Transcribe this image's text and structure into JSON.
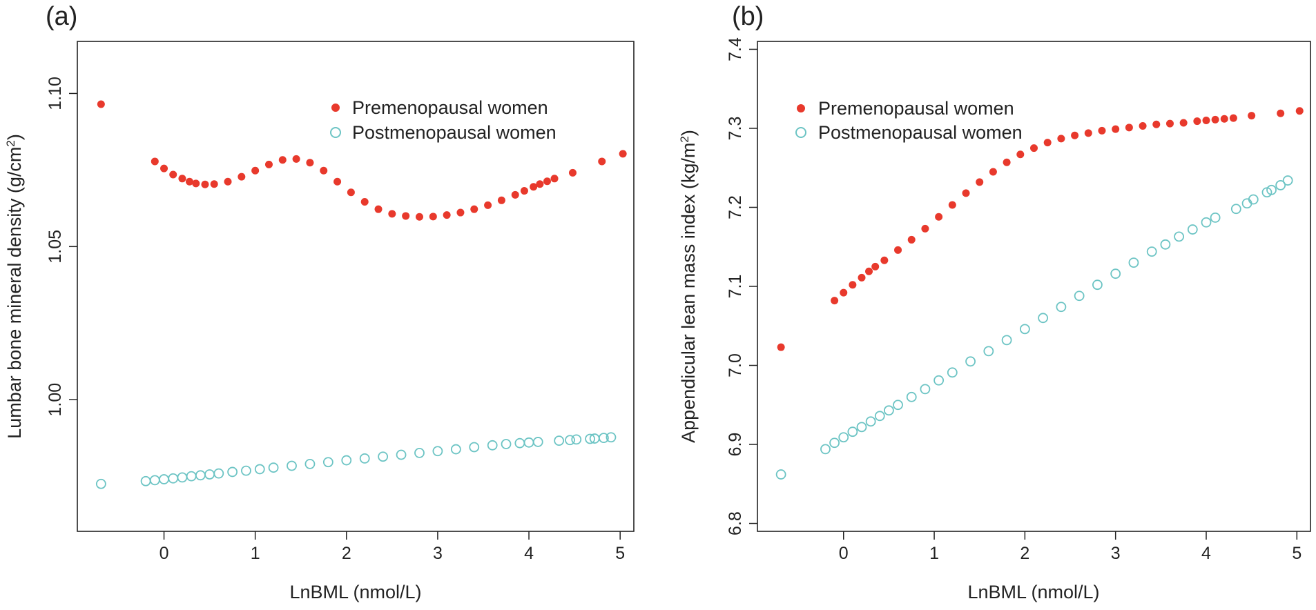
{
  "chart_data": [
    {
      "panel": "(a)",
      "type": "scatter",
      "xlabel": "LnBML (nmol/L)",
      "ylabel_main": "Lumbar bone mineral density (g/cm",
      "ylabel_sup": "2",
      "ylabel_tail": ")",
      "xlim": [
        -0.95,
        5.15
      ],
      "ylim": [
        0.957,
        1.117
      ],
      "xticks": [
        0,
        1,
        2,
        3,
        4,
        5
      ],
      "yticks": [
        1.0,
        1.05,
        1.1
      ],
      "xtick_labels": [
        "0",
        "1",
        "2",
        "3",
        "4",
        "5"
      ],
      "ytick_labels": [
        "1.00",
        "1.05",
        "1.10"
      ],
      "legend": [
        "Premenopausal women",
        "Postmenopausal women"
      ],
      "series": [
        {
          "name": "Premenopausal women",
          "marker": "filled-circle",
          "x": [
            -0.69,
            -0.1,
            0.0,
            0.1,
            0.2,
            0.28,
            0.35,
            0.45,
            0.55,
            0.7,
            0.85,
            1.0,
            1.15,
            1.3,
            1.45,
            1.6,
            1.75,
            1.9,
            2.05,
            2.2,
            2.35,
            2.5,
            2.65,
            2.8,
            2.95,
            3.1,
            3.25,
            3.4,
            3.55,
            3.7,
            3.85,
            3.95,
            4.05,
            4.12,
            4.2,
            4.28,
            4.48,
            4.8,
            5.03
          ],
          "y": [
            1.0965,
            1.0778,
            1.0755,
            1.0735,
            1.0722,
            1.0712,
            1.0706,
            1.0703,
            1.0704,
            1.0712,
            1.0728,
            1.0748,
            1.0768,
            1.0783,
            1.0786,
            1.0774,
            1.0748,
            1.0712,
            1.0677,
            1.0646,
            1.0622,
            1.0607,
            1.06,
            1.0597,
            1.0598,
            1.0603,
            1.0611,
            1.0622,
            1.0635,
            1.0651,
            1.0669,
            1.0682,
            1.0695,
            1.0704,
            1.0713,
            1.0722,
            1.0741,
            1.0778,
            1.0803
          ]
        },
        {
          "name": "Postmenopausal women",
          "marker": "open-circle",
          "x": [
            -0.69,
            -0.2,
            -0.1,
            0.0,
            0.1,
            0.2,
            0.3,
            0.4,
            0.5,
            0.6,
            0.75,
            0.9,
            1.05,
            1.2,
            1.4,
            1.6,
            1.8,
            2.0,
            2.2,
            2.4,
            2.6,
            2.8,
            3.0,
            3.2,
            3.4,
            3.6,
            3.75,
            3.9,
            4.0,
            4.1,
            4.33,
            4.45,
            4.52,
            4.67,
            4.72,
            4.82,
            4.9
          ],
          "y": [
            0.9725,
            0.9734,
            0.9737,
            0.974,
            0.9743,
            0.9746,
            0.975,
            0.9753,
            0.9756,
            0.9759,
            0.9764,
            0.9768,
            0.9773,
            0.9778,
            0.9784,
            0.979,
            0.9796,
            0.9802,
            0.9808,
            0.9814,
            0.982,
            0.9826,
            0.9832,
            0.9838,
            0.9845,
            0.9851,
            0.9855,
            0.9858,
            0.986,
            0.9862,
            0.9866,
            0.9868,
            0.987,
            0.9872,
            0.9873,
            0.9875,
            0.9877
          ]
        }
      ]
    },
    {
      "panel": "(b)",
      "type": "scatter",
      "xlabel": "LnBML (nmol/L)",
      "ylabel_main": "Appendicular lean mass index (kg/m",
      "ylabel_sup": "2",
      "ylabel_tail": ")",
      "xlim": [
        -0.95,
        5.15
      ],
      "ylim": [
        6.79,
        7.41
      ],
      "xticks": [
        0,
        1,
        2,
        3,
        4,
        5
      ],
      "yticks": [
        6.8,
        6.9,
        7.0,
        7.1,
        7.2,
        7.3,
        7.4
      ],
      "xtick_labels": [
        "0",
        "1",
        "2",
        "3",
        "4",
        "5"
      ],
      "ytick_labels": [
        "6.8",
        "6.9",
        "7.0",
        "7.1",
        "7.2",
        "7.3",
        "7.4"
      ],
      "legend": [
        "Premenopausal women",
        "Postmenopausal women"
      ],
      "series": [
        {
          "name": "Premenopausal women",
          "marker": "filled-circle",
          "x": [
            -0.69,
            -0.1,
            0.0,
            0.1,
            0.2,
            0.28,
            0.35,
            0.45,
            0.6,
            0.75,
            0.9,
            1.05,
            1.2,
            1.35,
            1.5,
            1.65,
            1.8,
            1.95,
            2.1,
            2.25,
            2.4,
            2.55,
            2.7,
            2.85,
            3.0,
            3.15,
            3.3,
            3.45,
            3.6,
            3.75,
            3.9,
            4.0,
            4.1,
            4.2,
            4.3,
            4.5,
            4.82,
            5.03
          ],
          "y": [
            7.023,
            7.082,
            7.092,
            7.102,
            7.111,
            7.119,
            7.125,
            7.133,
            7.146,
            7.159,
            7.173,
            7.188,
            7.203,
            7.218,
            7.232,
            7.245,
            7.257,
            7.267,
            7.275,
            7.282,
            7.287,
            7.291,
            7.294,
            7.297,
            7.299,
            7.301,
            7.303,
            7.305,
            7.306,
            7.307,
            7.309,
            7.31,
            7.311,
            7.312,
            7.313,
            7.316,
            7.319,
            7.322
          ]
        },
        {
          "name": "Postmenopausal women",
          "marker": "open-circle",
          "x": [
            -0.69,
            -0.2,
            -0.1,
            0.0,
            0.1,
            0.2,
            0.3,
            0.4,
            0.5,
            0.6,
            0.75,
            0.9,
            1.05,
            1.2,
            1.4,
            1.6,
            1.8,
            2.0,
            2.2,
            2.4,
            2.6,
            2.8,
            3.0,
            3.2,
            3.4,
            3.55,
            3.7,
            3.85,
            4.0,
            4.1,
            4.33,
            4.45,
            4.52,
            4.67,
            4.72,
            4.82,
            4.9
          ],
          "y": [
            6.862,
            6.894,
            6.902,
            6.909,
            6.916,
            6.922,
            6.929,
            6.936,
            6.943,
            6.95,
            6.96,
            6.97,
            6.981,
            6.991,
            7.005,
            7.018,
            7.032,
            7.046,
            7.06,
            7.074,
            7.088,
            7.102,
            7.116,
            7.13,
            7.144,
            7.153,
            7.163,
            7.172,
            7.181,
            7.187,
            7.198,
            7.205,
            7.21,
            7.219,
            7.222,
            7.228,
            7.234
          ]
        }
      ]
    }
  ],
  "colors": {
    "premenopausal": "#e8392c",
    "postmenopausal": "#6cc4c4"
  }
}
